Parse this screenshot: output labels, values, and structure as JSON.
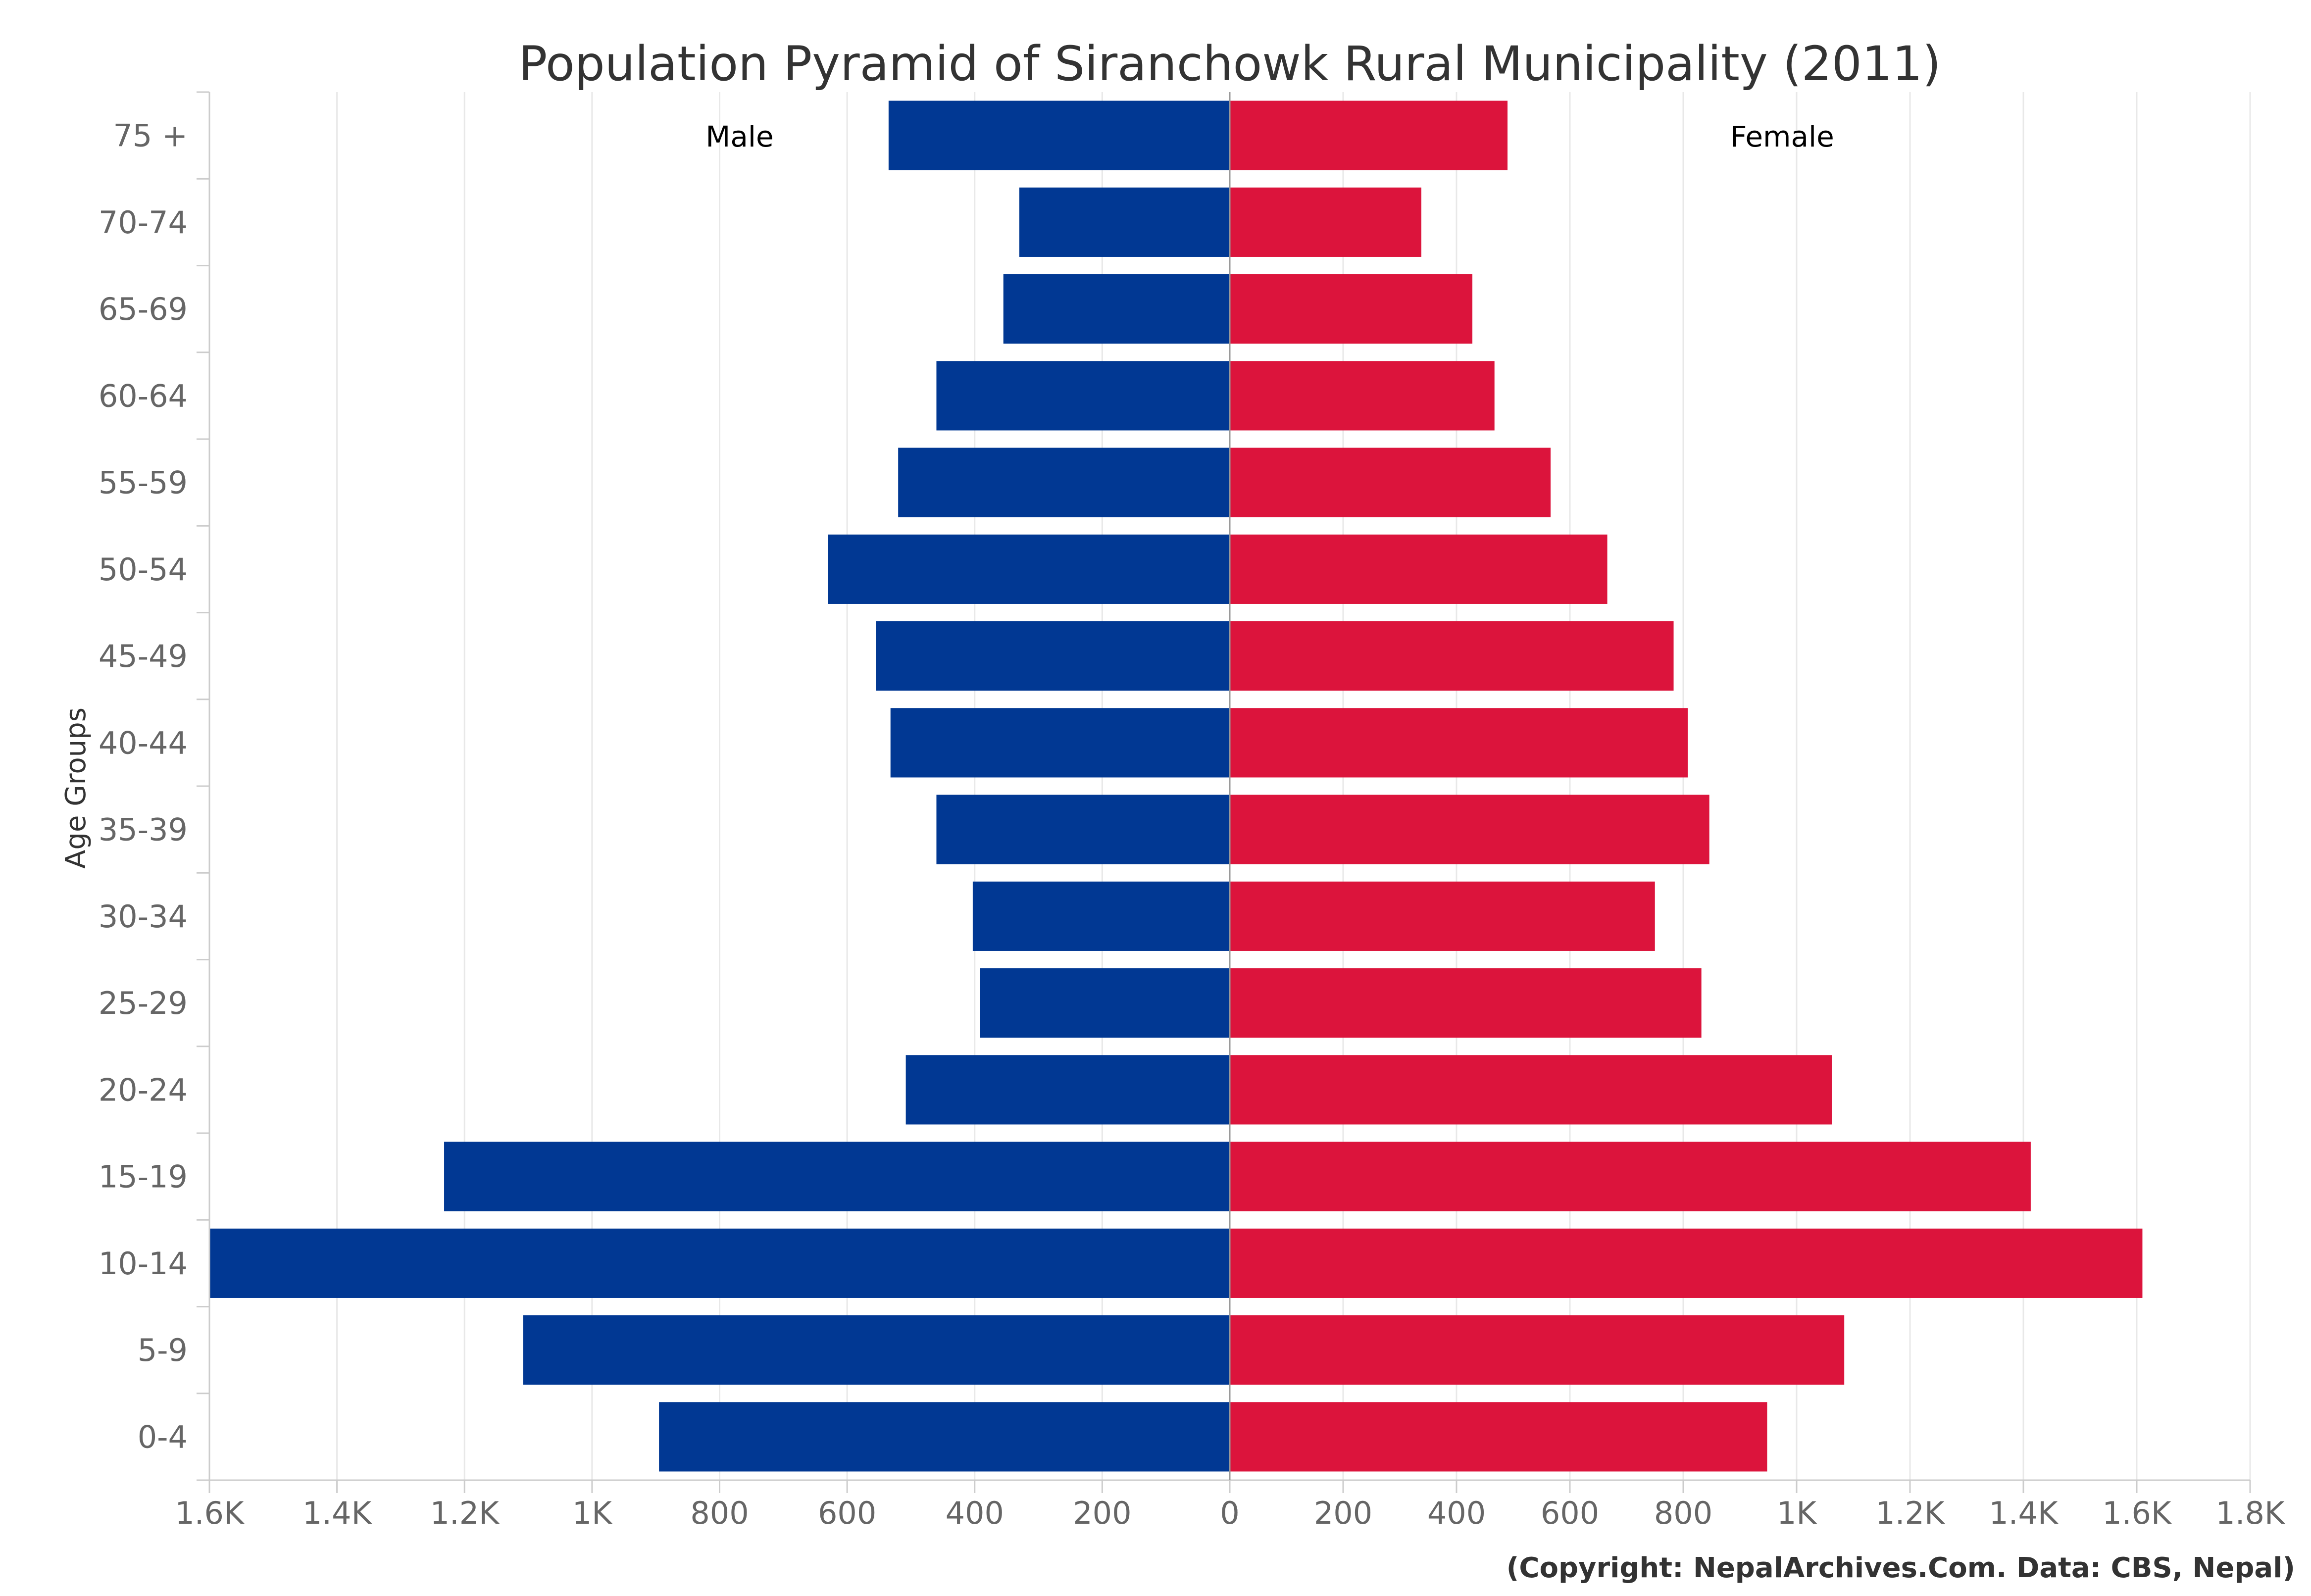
{
  "chart_data": {
    "type": "bar",
    "orientation": "horizontal-pyramid",
    "title": "Population Pyramid of Siranchowk Rural Municipality (2011)",
    "ylabel": "Age Groups",
    "credit": "(Copyright: NepalArchives.Com. Data: CBS, Nepal)",
    "categories": [
      "75 +",
      "70-74",
      "65-69",
      "60-64",
      "55-59",
      "50-54",
      "45-49",
      "40-44",
      "35-39",
      "30-34",
      "25-29",
      "20-24",
      "15-19",
      "10-14",
      "5-9",
      "0-4"
    ],
    "series": [
      {
        "name": "Male",
        "side": "left",
        "color": "#013893",
        "values": [
          535,
          330,
          355,
          460,
          520,
          630,
          555,
          532,
          460,
          403,
          392,
          508,
          1232,
          1600,
          1108,
          895
        ]
      },
      {
        "name": "Female",
        "side": "right",
        "color": "#DC143C",
        "values": [
          490,
          338,
          428,
          467,
          566,
          666,
          783,
          808,
          846,
          750,
          832,
          1062,
          1413,
          1610,
          1084,
          948
        ]
      }
    ],
    "xlim_left": [
      0,
      1600
    ],
    "xlim_right": [
      0,
      1800
    ],
    "xticks_left": [
      "1.6K",
      "1.4K",
      "1.2K",
      "1K",
      "800",
      "600",
      "400",
      "200",
      "0"
    ],
    "xticks_right": [
      "200",
      "400",
      "600",
      "800",
      "1K",
      "1.2K",
      "1.4K",
      "1.6K",
      "1.8K"
    ],
    "xtick_values_left": [
      1600,
      1400,
      1200,
      1000,
      800,
      600,
      400,
      200,
      0
    ],
    "xtick_values_right": [
      200,
      400,
      600,
      800,
      1000,
      1200,
      1400,
      1600,
      1800
    ],
    "grid": true
  }
}
